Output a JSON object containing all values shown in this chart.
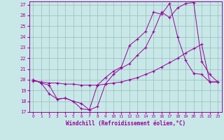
{
  "xlabel": "Windchill (Refroidissement éolien,°C)",
  "bg_color": "#c8e8e8",
  "grid_color": "#99bbbb",
  "line_color": "#990099",
  "ylim": [
    17,
    27.3
  ],
  "xlim": [
    -0.5,
    23.5
  ],
  "yticks": [
    17,
    18,
    19,
    20,
    21,
    22,
    23,
    24,
    25,
    26,
    27
  ],
  "xticks": [
    0,
    1,
    2,
    3,
    4,
    5,
    6,
    7,
    8,
    9,
    10,
    11,
    12,
    13,
    14,
    15,
    16,
    17,
    18,
    19,
    20,
    21,
    22,
    23
  ],
  "line1_x": [
    0,
    1,
    2,
    3,
    4,
    5,
    6,
    7,
    8,
    9,
    10,
    11,
    12,
    13,
    14,
    15,
    16,
    17,
    18,
    19,
    20,
    21,
    22,
    23
  ],
  "line1_y": [
    20.0,
    19.7,
    18.7,
    18.2,
    18.3,
    18.0,
    17.3,
    17.2,
    17.5,
    19.6,
    20.5,
    21.1,
    21.5,
    22.3,
    23.0,
    24.5,
    26.3,
    25.8,
    26.7,
    27.1,
    27.2,
    21.7,
    20.5,
    19.8
  ],
  "line2_x": [
    0,
    1,
    2,
    3,
    4,
    5,
    6,
    7,
    8,
    9,
    10,
    11,
    12,
    13,
    14,
    15,
    16,
    17,
    18,
    19,
    20,
    21,
    22,
    23
  ],
  "line2_y": [
    19.9,
    19.8,
    19.7,
    19.7,
    19.6,
    19.6,
    19.5,
    19.5,
    19.5,
    19.6,
    19.7,
    19.8,
    20.0,
    20.2,
    20.5,
    20.8,
    21.2,
    21.6,
    22.0,
    22.5,
    22.9,
    23.3,
    19.8,
    19.8
  ],
  "line3_x": [
    0,
    1,
    2,
    3,
    4,
    5,
    6,
    7,
    8,
    9,
    10,
    11,
    12,
    13,
    14,
    15,
    16,
    17,
    18,
    19,
    20,
    21,
    22,
    23
  ],
  "line3_y": [
    20.0,
    19.7,
    19.5,
    18.2,
    18.3,
    18.0,
    17.8,
    17.2,
    19.5,
    20.2,
    20.8,
    21.2,
    23.2,
    23.8,
    24.5,
    26.3,
    26.1,
    27.1,
    24.0,
    21.8,
    20.6,
    20.5,
    19.8,
    19.8
  ]
}
